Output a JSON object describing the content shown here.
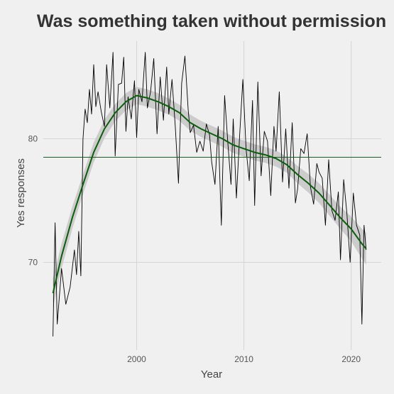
{
  "chart_data": {
    "type": "line",
    "title": "Was something taken without permission",
    "xlabel": "Year",
    "ylabel": "Yes responses",
    "xlim": [
      1991.3,
      2022.8
    ],
    "ylim": [
      62.9,
      87.9
    ],
    "x_ticks": [
      2000,
      2010,
      2020
    ],
    "y_ticks": [
      70,
      80
    ],
    "grid": true,
    "legend": "none",
    "colors": {
      "background": "#f0f0f0",
      "grid": "#d4d4d4",
      "raw_line": "#000000",
      "smooth_line": "#0b5e0b",
      "ribbon": "#c8c8c8",
      "mean_line": "#1a5e1a"
    },
    "mean_hline": 78.5,
    "series": [
      {
        "type": "line",
        "x": [
          1992.2,
          1992.4,
          1992.6,
          1993.0,
          1993.4,
          1993.8,
          1994.2,
          1994.4,
          1994.6,
          1994.8,
          1995.0,
          1995.2,
          1995.4,
          1995.6,
          1995.8,
          1996.0,
          1996.2,
          1996.4,
          1996.7,
          1997.0,
          1997.2,
          1997.5,
          1997.8,
          1998.0,
          1998.3,
          1998.6,
          1998.8,
          1999.0,
          1999.2,
          1999.5,
          1999.8,
          2000.0,
          2000.2,
          2000.5,
          2000.8,
          2001.0,
          2001.3,
          2001.6,
          2001.9,
          2002.2,
          2002.5,
          2002.8,
          2003.0,
          2003.3,
          2003.6,
          2003.9,
          2004.2,
          2004.5,
          2004.8,
          2005.0,
          2005.3,
          2005.6,
          2005.9,
          2006.2,
          2006.5,
          2006.8,
          2007.0,
          2007.3,
          2007.6,
          2007.9,
          2008.2,
          2008.5,
          2008.8,
          2009.0,
          2009.3,
          2009.6,
          2009.9,
          2010.2,
          2010.5,
          2010.8,
          2011.0,
          2011.3,
          2011.6,
          2011.9,
          2012.2,
          2012.5,
          2012.8,
          2013.0,
          2013.3,
          2013.6,
          2013.9,
          2014.2,
          2014.5,
          2014.8,
          2015.0,
          2015.3,
          2015.6,
          2015.9,
          2016.2,
          2016.5,
          2016.8,
          2017.0,
          2017.3,
          2017.6,
          2017.9,
          2018.2,
          2018.5,
          2018.8,
          2019.0,
          2019.3,
          2019.6,
          2019.9,
          2020.2,
          2020.5,
          2020.8,
          2021.0,
          2021.2,
          2021.4
        ],
        "y": [
          64.0,
          73.2,
          65.0,
          69.5,
          66.6,
          68.0,
          71.0,
          69.0,
          72.5,
          68.9,
          80.0,
          82.4,
          81.3,
          84.0,
          82.0,
          86.0,
          82.6,
          83.8,
          82.2,
          81.0,
          86.0,
          82.5,
          87.0,
          78.6,
          84.4,
          84.5,
          86.6,
          80.6,
          83.4,
          81.6,
          84.7,
          80.1,
          84.0,
          83.0,
          87.0,
          82.5,
          83.8,
          86.5,
          80.4,
          85.0,
          81.5,
          85.8,
          82.0,
          84.8,
          81.0,
          76.4,
          84.5,
          86.7,
          82.4,
          80.5,
          81.1,
          78.9,
          79.8,
          79.0,
          81.2,
          80.3,
          78.1,
          76.3,
          81.0,
          73.0,
          83.5,
          79.7,
          76.3,
          81.6,
          75.2,
          80.2,
          84.8,
          79.2,
          76.6,
          83.1,
          74.6,
          84.6,
          77.0,
          80.6,
          79.8,
          75.4,
          81.0,
          79.0,
          83.8,
          76.5,
          80.8,
          76.0,
          81.3,
          74.8,
          75.9,
          79.2,
          78.8,
          80.4,
          76.1,
          74.7,
          78.0,
          77.3,
          76.8,
          73.0,
          78.3,
          74.2,
          73.4,
          75.7,
          70.2,
          76.7,
          74.0,
          70.0,
          75.6,
          73.0,
          72.2,
          65.0,
          73.0,
          71.0
        ]
      },
      {
        "type": "smooth",
        "x": [
          1992.2,
          1993.0,
          1994.0,
          1995.0,
          1996.0,
          1997.0,
          1998.0,
          1999.0,
          2000.0,
          2001.0,
          2002.0,
          2003.0,
          2004.0,
          2005.0,
          2006.0,
          2007.0,
          2008.0,
          2009.0,
          2010.0,
          2011.0,
          2012.0,
          2013.0,
          2014.0,
          2015.0,
          2016.0,
          2017.0,
          2018.0,
          2019.0,
          2020.0,
          2021.0,
          2021.4
        ],
        "y": [
          67.5,
          70.5,
          73.6,
          76.3,
          78.9,
          80.8,
          82.1,
          83.0,
          83.5,
          83.3,
          83.0,
          82.6,
          82.1,
          81.3,
          80.8,
          80.4,
          80.0,
          79.5,
          79.2,
          78.9,
          78.7,
          78.4,
          77.9,
          77.1,
          76.4,
          75.6,
          74.6,
          73.6,
          72.7,
          71.5,
          71.1
        ],
        "ribbon_halfwidth": [
          1.2,
          1.0,
          0.9,
          0.8,
          0.8,
          0.75,
          0.7,
          0.7,
          0.7,
          0.7,
          0.7,
          0.65,
          0.65,
          0.65,
          0.65,
          0.65,
          0.65,
          0.65,
          0.65,
          0.65,
          0.65,
          0.65,
          0.65,
          0.7,
          0.75,
          0.8,
          0.85,
          0.9,
          1.0,
          1.2,
          1.3
        ]
      }
    ]
  }
}
